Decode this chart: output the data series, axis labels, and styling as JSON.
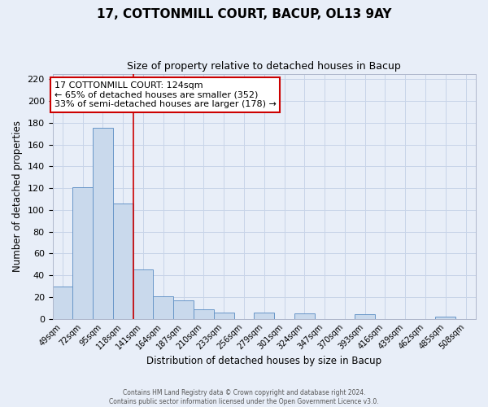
{
  "title": "17, COTTONMILL COURT, BACUP, OL13 9AY",
  "subtitle": "Size of property relative to detached houses in Bacup",
  "xlabel": "Distribution of detached houses by size in Bacup",
  "ylabel": "Number of detached properties",
  "bar_color": "#c9d9ec",
  "bar_edge_color": "#6896c8",
  "bin_labels": [
    "49sqm",
    "72sqm",
    "95sqm",
    "118sqm",
    "141sqm",
    "164sqm",
    "187sqm",
    "210sqm",
    "233sqm",
    "256sqm",
    "279sqm",
    "301sqm",
    "324sqm",
    "347sqm",
    "370sqm",
    "393sqm",
    "416sqm",
    "439sqm",
    "462sqm",
    "485sqm",
    "508sqm"
  ],
  "bar_values": [
    30,
    121,
    175,
    106,
    45,
    21,
    17,
    9,
    6,
    0,
    6,
    0,
    5,
    0,
    0,
    4,
    0,
    0,
    0,
    2,
    0
  ],
  "bin_width": 23,
  "property_line_x": 3,
  "ylim": [
    0,
    225
  ],
  "yticks": [
    0,
    20,
    40,
    60,
    80,
    100,
    120,
    140,
    160,
    180,
    200,
    220
  ],
  "annotation_title": "17 COTTONMILL COURT: 124sqm",
  "annotation_line1": "← 65% of detached houses are smaller (352)",
  "annotation_line2": "33% of semi-detached houses are larger (178) →",
  "annotation_box_facecolor": "#ffffff",
  "annotation_box_edgecolor": "#cc0000",
  "vline_color": "#cc0000",
  "grid_color": "#c8d4e8",
  "background_color": "#e8eef8",
  "footer1": "Contains HM Land Registry data © Crown copyright and database right 2024.",
  "footer2": "Contains public sector information licensed under the Open Government Licence v3.0."
}
